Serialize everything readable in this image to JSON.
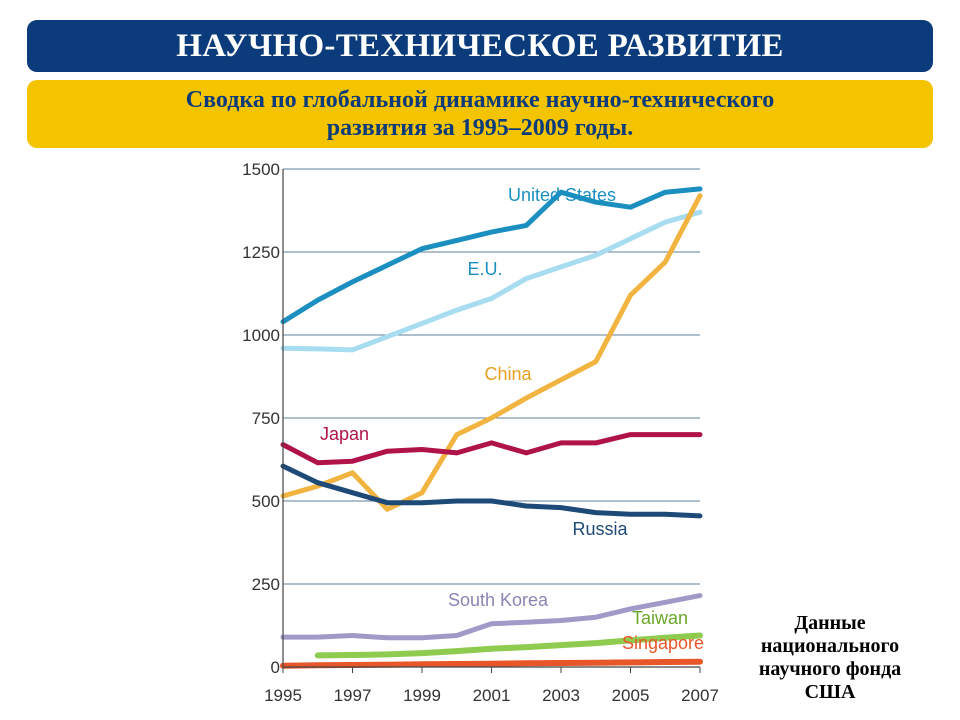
{
  "header": {
    "title": "НАУЧНО-ТЕХНИЧЕСКОЕ РАЗВИТИЕ",
    "subtitle": "Сводка по глобальной динамике научно-технического\nразвития за 1995–2009 годы."
  },
  "source_note": "Данные\nнационального\nнаучного фонда\nСША",
  "colors": {
    "title_bg": "#0b3b7a",
    "subtitle_bg": "#f5c400",
    "grid": "#5f7f99"
  },
  "chart_data": {
    "type": "line",
    "title": "",
    "xlabel": "",
    "ylabel": "",
    "xlim": [
      1995,
      2007
    ],
    "ylim": [
      0,
      1500
    ],
    "x_ticks": [
      "1995",
      "1997",
      "1999",
      "2001",
      "2003",
      "2005",
      "2007"
    ],
    "y_ticks": [
      "0",
      "250",
      "500",
      "750",
      "1000",
      "1250",
      "1500"
    ],
    "grid": true,
    "legend": "inline labels",
    "series": [
      {
        "name": "United States",
        "color": "#1a8fc0",
        "label_color": "#1a8fc0",
        "x": [
          1995,
          1996,
          1997,
          1998,
          1999,
          2000,
          2001,
          2002,
          2003,
          2004,
          2005,
          2006,
          2007
        ],
        "values": [
          1040,
          1105,
          1160,
          1210,
          1260,
          1285,
          1310,
          1330,
          1430,
          1400,
          1385,
          1430,
          1440
        ]
      },
      {
        "name": "E.U.",
        "color": "#a8dcf0",
        "label_color": "#1a8fc0",
        "x": [
          1995,
          1996,
          1997,
          1998,
          1999,
          2000,
          2001,
          2002,
          2003,
          2004,
          2005,
          2006,
          2007
        ],
        "values": [
          960,
          958,
          955,
          995,
          1035,
          1075,
          1110,
          1170,
          1205,
          1240,
          1290,
          1340,
          1370
        ]
      },
      {
        "name": "China",
        "color": "#f2b441",
        "label_color": "#e8a020",
        "x": [
          1995,
          1996,
          1997,
          1998,
          1999,
          2000,
          2001,
          2002,
          2003,
          2004,
          2005,
          2006,
          2007
        ],
        "values": [
          515,
          545,
          585,
          475,
          525,
          700,
          750,
          810,
          865,
          920,
          1120,
          1220,
          1420
        ]
      },
      {
        "name": "Japan",
        "color": "#b0124a",
        "label_color": "#b0124a",
        "x": [
          1995,
          1996,
          1997,
          1998,
          1999,
          2000,
          2001,
          2002,
          2003,
          2004,
          2005,
          2006,
          2007
        ],
        "values": [
          670,
          615,
          620,
          650,
          655,
          645,
          675,
          645,
          675,
          675,
          700,
          700,
          700
        ]
      },
      {
        "name": "Russia",
        "color": "#1e4a78",
        "label_color": "#1e4a78",
        "x": [
          1995,
          1996,
          1997,
          1998,
          1999,
          2000,
          2001,
          2002,
          2003,
          2004,
          2005,
          2006,
          2007
        ],
        "values": [
          605,
          555,
          525,
          495,
          495,
          500,
          500,
          485,
          480,
          465,
          460,
          460,
          455
        ]
      },
      {
        "name": "South Korea",
        "color": "#a09ac8",
        "label_color": "#8a84b4",
        "x": [
          1995,
          1996,
          1997,
          1998,
          1999,
          2000,
          2001,
          2002,
          2003,
          2004,
          2005,
          2006,
          2007
        ],
        "values": [
          90,
          90,
          95,
          88,
          88,
          95,
          130,
          135,
          140,
          150,
          175,
          195,
          215
        ]
      },
      {
        "name": "Taiwan",
        "color": "#8ecb4e",
        "label_color": "#6aa62a",
        "x": [
          1996,
          1997,
          1998,
          1999,
          2000,
          2001,
          2002,
          2003,
          2004,
          2005,
          2006,
          2007
        ],
        "values": [
          35,
          36,
          38,
          42,
          48,
          55,
          60,
          66,
          72,
          80,
          88,
          95
        ]
      },
      {
        "name": "Singapore",
        "color": "#e8572a",
        "label_color": "#e8572a",
        "x": [
          1995,
          1996,
          1997,
          1998,
          1999,
          2000,
          2001,
          2002,
          2003,
          2004,
          2005,
          2006,
          2007
        ],
        "values": [
          4,
          5,
          6,
          7,
          8,
          9,
          10,
          11,
          12,
          13,
          14,
          15,
          16
        ]
      }
    ]
  }
}
